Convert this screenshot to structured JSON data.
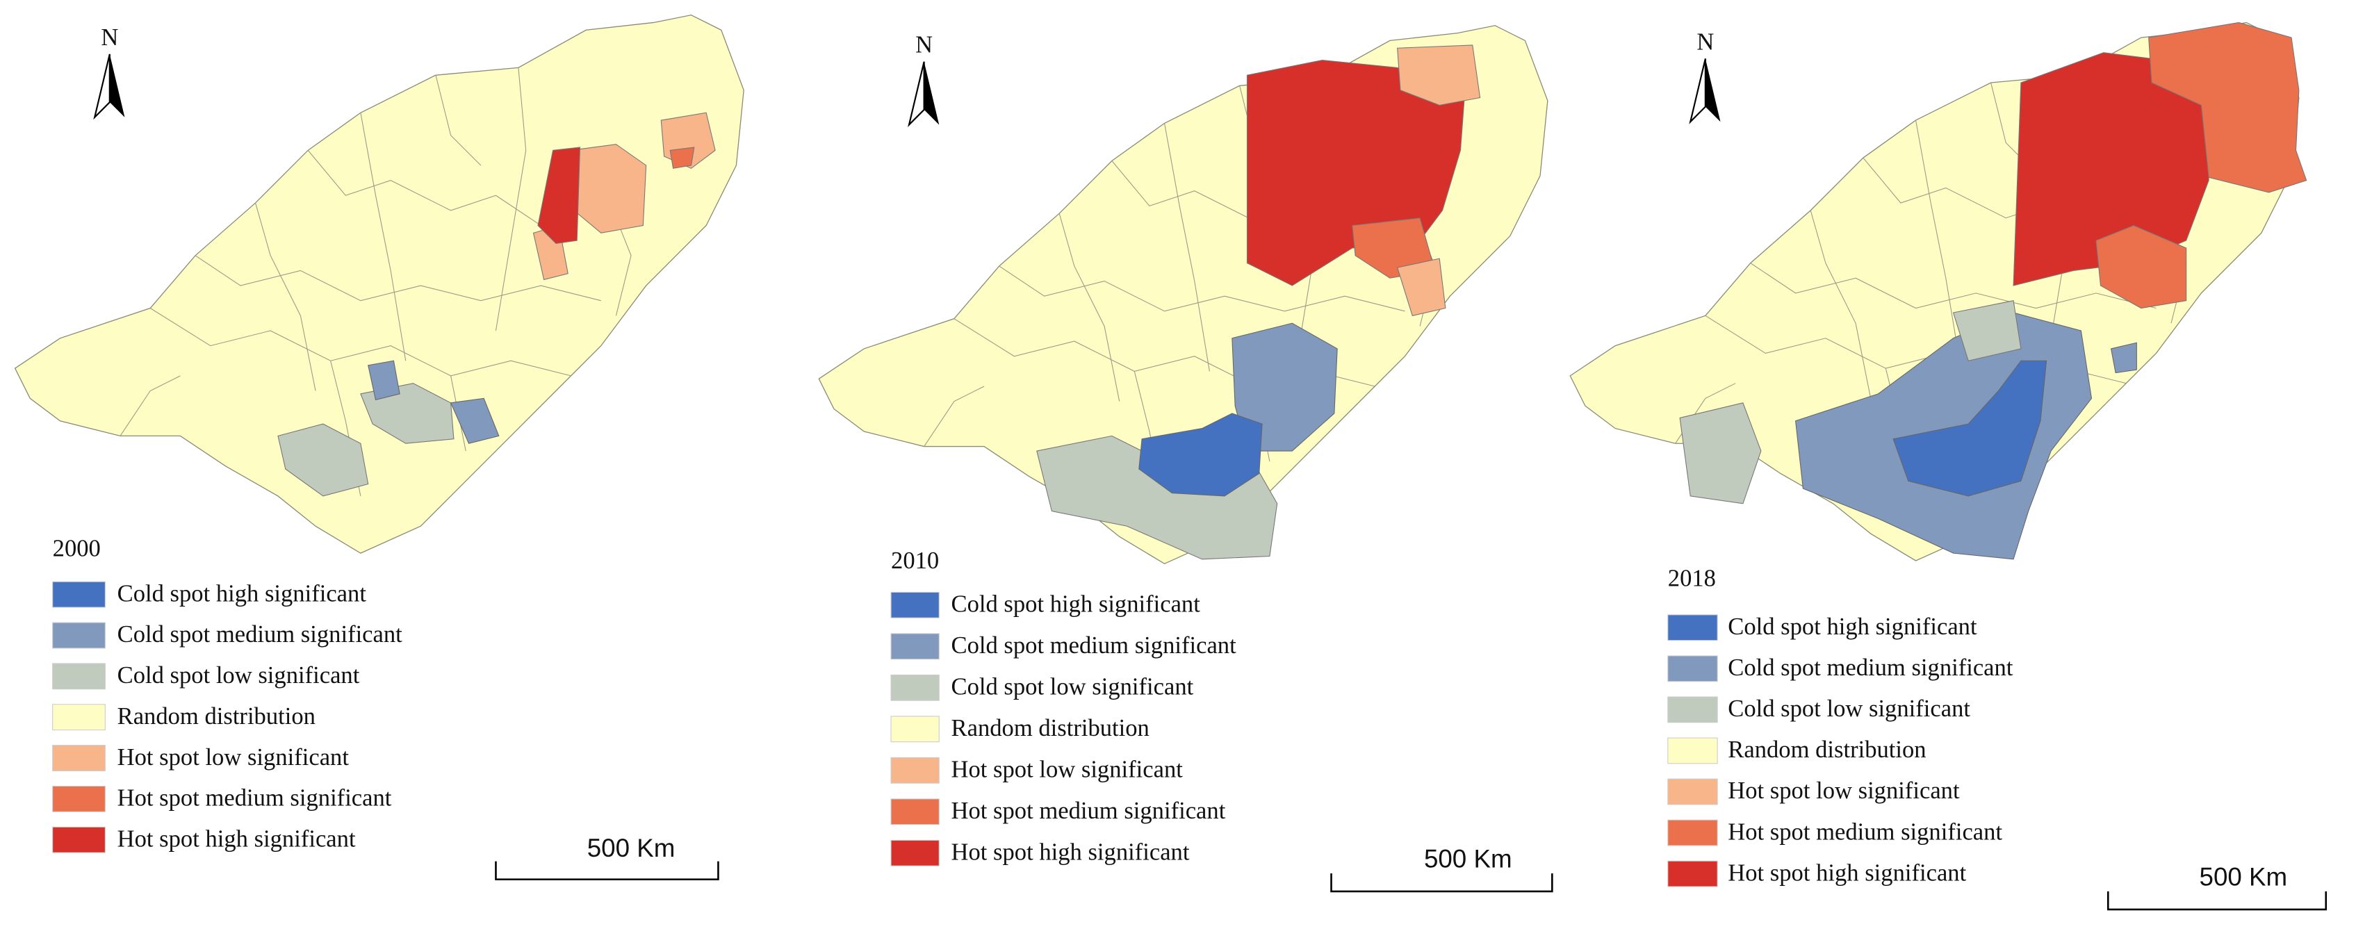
{
  "panels": [
    {
      "year": "2000",
      "north": "N",
      "scale_label": "500 Km",
      "legend": [
        {
          "label": "Cold spot high significant",
          "color": "#4472c0"
        },
        {
          "label": "Cold spot medium significant",
          "color": "#8199bd"
        },
        {
          "label": "Cold spot low significant",
          "color": "#c0cbbd"
        },
        {
          "label": "Random distribution",
          "color": "#fefec4"
        },
        {
          "label": "Hot spot low significant",
          "color": "#f8b58a"
        },
        {
          "label": "Hot spot medium significant",
          "color": "#eb704c"
        },
        {
          "label": "Hot spot high significant",
          "color": "#d7302b"
        }
      ]
    },
    {
      "year": "2010",
      "north": "N",
      "scale_label": "500 Km",
      "legend": [
        {
          "label": "Cold spot high significant",
          "color": "#4472c0"
        },
        {
          "label": "Cold spot medium significant",
          "color": "#8199bd"
        },
        {
          "label": "Cold spot low significant",
          "color": "#c0cbbd"
        },
        {
          "label": "Random distribution",
          "color": "#fefec4"
        },
        {
          "label": "Hot spot low significant",
          "color": "#f8b58a"
        },
        {
          "label": "Hot spot medium significant",
          "color": "#eb704c"
        },
        {
          "label": "Hot spot high significant",
          "color": "#d7302b"
        }
      ]
    },
    {
      "year": "2018",
      "north": "N",
      "scale_label": "500 Km",
      "legend": [
        {
          "label": "Cold spot high significant",
          "color": "#4472c0"
        },
        {
          "label": "Cold spot medium significant",
          "color": "#8199bd"
        },
        {
          "label": "Cold spot low significant",
          "color": "#c0cbbd"
        },
        {
          "label": "Random distribution",
          "color": "#fefec4"
        },
        {
          "label": "Hot spot low significant",
          "color": "#f8b58a"
        },
        {
          "label": "Hot spot medium significant",
          "color": "#eb704c"
        },
        {
          "label": "Hot spot high significant",
          "color": "#d7302b"
        }
      ]
    }
  ]
}
